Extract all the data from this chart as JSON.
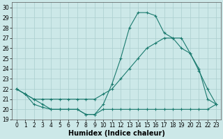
{
  "xlabel": "Humidex (Indice chaleur)",
  "background_color": "#cce8e8",
  "line_color": "#1a7a6e",
  "x": [
    0,
    1,
    2,
    3,
    4,
    5,
    6,
    7,
    8,
    9,
    10,
    11,
    12,
    13,
    14,
    15,
    16,
    17,
    18,
    19,
    20,
    21,
    22,
    23
  ],
  "line1": [
    22,
    21.5,
    21,
    20.5,
    20,
    20,
    20,
    20,
    19.5,
    19.5,
    20.5,
    22.5,
    25,
    28,
    29.5,
    29.5,
    29.2,
    27.5,
    27,
    27,
    25.5,
    23.8,
    22,
    20.5
  ],
  "line2": [
    22,
    21.5,
    21,
    21,
    21,
    21,
    21,
    21,
    21,
    21,
    21.5,
    22,
    23,
    24,
    25,
    26,
    26.5,
    27,
    27,
    26,
    25.5,
    24,
    21,
    20.5
  ],
  "line3": [
    22,
    21.5,
    20.5,
    20.2,
    20,
    20,
    20,
    20,
    19.5,
    19.5,
    20,
    20,
    20,
    20,
    20,
    20,
    20,
    20,
    20,
    20,
    20,
    20,
    20,
    20.5
  ],
  "xlim": [
    -0.5,
    23.5
  ],
  "ylim": [
    19,
    30.5
  ],
  "yticks": [
    19,
    20,
    21,
    22,
    23,
    24,
    25,
    26,
    27,
    28,
    29,
    30
  ],
  "xticks": [
    0,
    1,
    2,
    3,
    4,
    5,
    6,
    7,
    8,
    9,
    10,
    11,
    12,
    13,
    14,
    15,
    16,
    17,
    18,
    19,
    20,
    21,
    22,
    23
  ],
  "grid_color": "#aacece",
  "marker": "+",
  "markersize": 3.5,
  "linewidth": 0.8,
  "xlabel_fontsize": 7,
  "tick_fontsize": 5.5
}
